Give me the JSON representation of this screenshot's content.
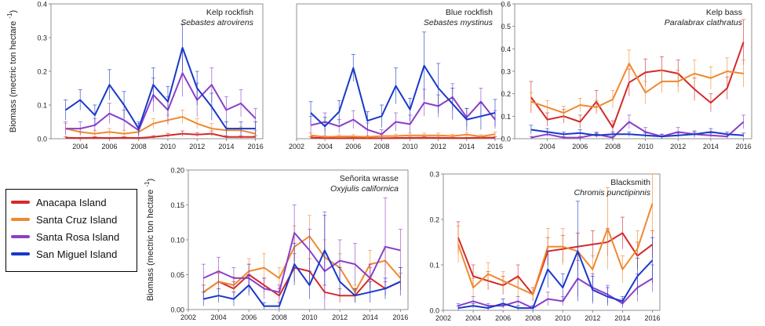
{
  "years": [
    2003,
    2004,
    2005,
    2006,
    2007,
    2008,
    2009,
    2010,
    2011,
    2012,
    2013,
    2014,
    2015,
    2016
  ],
  "colors": {
    "Anacapa Island": "#d42a2a",
    "Santa Cruz Island": "#ee8a2e",
    "Santa Rosa Island": "#8a3fc8",
    "San Miguel Island": "#1a38c8"
  },
  "legend": {
    "items": [
      {
        "label": "Anacapa Island",
        "color": "#d42a2a"
      },
      {
        "label": "Santa Cruz Island",
        "color": "#ee8a2e"
      },
      {
        "label": "Santa Rosa Island",
        "color": "#8a3fc8"
      },
      {
        "label": "San Miguel Island",
        "color": "#1a38c8"
      }
    ]
  },
  "chart_data": [
    {
      "type": "line",
      "title": "Kelp rockfish",
      "subtitle": "Sebastes atrovirens",
      "ylabel": "Biomass (mectric ton hectare",
      "ylabel_sup": "-1",
      "ylabel_close": ")",
      "xlim": [
        2002,
        2016.5
      ],
      "ylim": [
        0,
        0.4
      ],
      "yticks": [
        "0.0",
        "0.1",
        "0.2",
        "0.3",
        "0.4"
      ],
      "ytick_values": [
        0,
        0.1,
        0.2,
        0.3,
        0.4
      ],
      "xticks": [
        "2004",
        "2006",
        "2008",
        "2010",
        "2012",
        "2014",
        "2016"
      ],
      "xtick_values": [
        2004,
        2006,
        2008,
        2010,
        2012,
        2014,
        2016
      ],
      "series": [
        {
          "name": "Anacapa Island",
          "values": [
            0.003,
            0.002,
            0.003,
            0.002,
            0.003,
            0.002,
            0.005,
            0.01,
            0.015,
            0.012,
            0.015,
            0.005,
            0.005,
            0.005
          ],
          "err": [
            0.003,
            0.002,
            0.003,
            0.002,
            0.003,
            0.002,
            0.004,
            0.006,
            0.008,
            0.006,
            0.008,
            0.004,
            0.004,
            0.004
          ]
        },
        {
          "name": "Santa Cruz Island",
          "values": [
            0.03,
            0.02,
            0.015,
            0.02,
            0.015,
            0.02,
            0.045,
            0.055,
            0.065,
            0.045,
            0.03,
            0.025,
            0.025,
            0.015
          ],
          "err": [
            0.015,
            0.01,
            0.01,
            0.01,
            0.01,
            0.01,
            0.015,
            0.015,
            0.02,
            0.015,
            0.015,
            0.01,
            0.01,
            0.01
          ]
        },
        {
          "name": "Santa Rosa Island",
          "values": [
            0.03,
            0.03,
            0.04,
            0.075,
            0.055,
            0.025,
            0.13,
            0.085,
            0.195,
            0.115,
            0.16,
            0.085,
            0.105,
            0.06
          ],
          "err": [
            0.02,
            0.02,
            0.02,
            0.03,
            0.03,
            0.02,
            0.05,
            0.04,
            0.07,
            0.05,
            0.05,
            0.04,
            0.04,
            0.03
          ]
        },
        {
          "name": "San Miguel Island",
          "values": [
            0.085,
            0.115,
            0.07,
            0.16,
            0.1,
            0.03,
            0.16,
            0.11,
            0.27,
            0.15,
            0.095,
            0.03,
            0.03,
            0.03
          ],
          "err": [
            0.03,
            0.03,
            0.03,
            0.045,
            0.04,
            0.02,
            0.05,
            0.045,
            0.07,
            0.05,
            0.04,
            0.02,
            0.02,
            0.02
          ]
        }
      ]
    },
    {
      "type": "line",
      "title": "Blue rockfish",
      "subtitle": "Sebastes mystinus",
      "xlim": [
        2002,
        2016.5
      ],
      "ylim": [
        0,
        0.6
      ],
      "yticks": [],
      "ytick_values": [],
      "xticks": [
        "2002",
        "2004",
        "2006",
        "2008",
        "2010",
        "2012",
        "2014",
        "2016"
      ],
      "xtick_values": [
        2002,
        2004,
        2006,
        2008,
        2010,
        2012,
        2014,
        2016
      ],
      "series": [
        {
          "name": "Anacapa Island",
          "values": [
            0.005,
            0.003,
            0.002,
            0.003,
            0.002,
            0.002,
            0.003,
            0.004,
            0.005,
            0.004,
            0.003,
            0.003,
            0.005,
            0.005
          ],
          "err": [
            0.004,
            0.003,
            0.002,
            0.003,
            0.002,
            0.002,
            0.003,
            0.003,
            0.004,
            0.003,
            0.003,
            0.003,
            0.004,
            0.004
          ]
        },
        {
          "name": "Santa Cruz Island",
          "values": [
            0.015,
            0.008,
            0.01,
            0.01,
            0.008,
            0.012,
            0.012,
            0.015,
            0.015,
            0.015,
            0.012,
            0.018,
            0.01,
            0.02
          ],
          "err": [
            0.01,
            0.006,
            0.008,
            0.008,
            0.006,
            0.008,
            0.008,
            0.01,
            0.01,
            0.01,
            0.008,
            0.01,
            0.008,
            0.01
          ]
        },
        {
          "name": "Santa Rosa Island",
          "values": [
            0.06,
            0.075,
            0.055,
            0.085,
            0.04,
            0.02,
            0.075,
            0.065,
            0.16,
            0.145,
            0.185,
            0.095,
            0.165,
            0.085
          ],
          "err": [
            0.04,
            0.04,
            0.03,
            0.04,
            0.03,
            0.02,
            0.04,
            0.04,
            0.06,
            0.05,
            0.06,
            0.04,
            0.06,
            0.04
          ]
        },
        {
          "name": "San Miguel Island",
          "values": [
            0.115,
            0.055,
            0.12,
            0.315,
            0.08,
            0.1,
            0.235,
            0.13,
            0.325,
            0.225,
            0.155,
            0.085,
            0.1,
            0.115
          ],
          "err": [
            0.05,
            0.04,
            0.05,
            0.06,
            0.04,
            0.05,
            0.08,
            0.05,
            0.15,
            0.11,
            0.07,
            0.05,
            0.06,
            0.06
          ]
        }
      ]
    },
    {
      "type": "line",
      "title": "Kelp bass",
      "subtitle": "Paralabrax clathratus",
      "xlim": [
        2002,
        2016.5
      ],
      "ylim": [
        0,
        0.6
      ],
      "yticks": [
        "0.0",
        "0.1",
        "0.2",
        "0.3",
        "0.4",
        "0.5",
        "0.6"
      ],
      "ytick_values": [
        0,
        0.1,
        0.2,
        0.3,
        0.4,
        0.5,
        0.6
      ],
      "xticks": [
        "2004",
        "2006",
        "2008",
        "2010",
        "2012",
        "2014",
        "2016"
      ],
      "xtick_values": [
        2004,
        2006,
        2008,
        2010,
        2012,
        2014,
        2016
      ],
      "series": [
        {
          "name": "Anacapa Island",
          "values": [
            0.185,
            0.085,
            0.1,
            0.075,
            0.165,
            0.05,
            0.25,
            0.295,
            0.305,
            0.29,
            0.22,
            0.16,
            0.225,
            0.43
          ],
          "err": [
            0.07,
            0.03,
            0.03,
            0.03,
            0.05,
            0.03,
            0.06,
            0.06,
            0.06,
            0.06,
            0.05,
            0.04,
            0.05,
            0.1
          ]
        },
        {
          "name": "Santa Cruz Island",
          "values": [
            0.165,
            0.14,
            0.115,
            0.15,
            0.14,
            0.175,
            0.335,
            0.205,
            0.255,
            0.255,
            0.29,
            0.27,
            0.3,
            0.29
          ],
          "err": [
            0.04,
            0.03,
            0.03,
            0.03,
            0.03,
            0.04,
            0.06,
            0.05,
            0.05,
            0.05,
            0.06,
            0.05,
            0.06,
            0.06
          ]
        },
        {
          "name": "Santa Rosa Island",
          "values": [
            0.005,
            0.02,
            0.005,
            0.005,
            0.02,
            0.005,
            0.075,
            0.03,
            0.01,
            0.03,
            0.02,
            0.015,
            0.01,
            0.075
          ],
          "err": [
            0.005,
            0.01,
            0.005,
            0.005,
            0.01,
            0.005,
            0.03,
            0.02,
            0.01,
            0.02,
            0.015,
            0.01,
            0.01,
            0.03
          ]
        },
        {
          "name": "San Miguel Island",
          "values": [
            0.04,
            0.03,
            0.02,
            0.025,
            0.015,
            0.02,
            0.02,
            0.015,
            0.01,
            0.015,
            0.02,
            0.03,
            0.02,
            0.015
          ],
          "err": [
            0.02,
            0.015,
            0.01,
            0.015,
            0.01,
            0.01,
            0.01,
            0.01,
            0.01,
            0.01,
            0.01,
            0.015,
            0.01,
            0.01
          ]
        }
      ]
    },
    {
      "type": "line",
      "title": "Señorita wrasse",
      "subtitle": "Oxyjulis californica",
      "ylabel": "Biomass (mectric ton hectare",
      "ylabel_sup": "-1",
      "ylabel_close": ")",
      "xlim": [
        2002,
        2016.5
      ],
      "ylim": [
        0,
        0.2
      ],
      "yticks": [
        "0.00",
        "0.05",
        "0.10",
        "0.15",
        "0.20"
      ],
      "ytick_values": [
        0,
        0.05,
        0.1,
        0.15,
        0.2
      ],
      "xticks": [
        "2002",
        "2004",
        "2006",
        "2008",
        "2010",
        "2012",
        "2014",
        "2016"
      ],
      "xtick_values": [
        2002,
        2004,
        2006,
        2008,
        2010,
        2012,
        2014,
        2016
      ],
      "series": [
        {
          "name": "Anacapa Island",
          "values": [
            0.025,
            0.04,
            0.03,
            0.05,
            0.035,
            0.02,
            0.06,
            0.055,
            0.025,
            0.02,
            0.02,
            0.045,
            0.03,
            0.04
          ],
          "err": [
            0.01,
            0.012,
            0.01,
            0.015,
            0.01,
            0.01,
            0.02,
            0.018,
            0.01,
            0.01,
            0.01,
            0.015,
            0.01,
            0.012
          ]
        },
        {
          "name": "Santa Cruz Island",
          "values": [
            0.025,
            0.04,
            0.035,
            0.055,
            0.06,
            0.045,
            0.09,
            0.105,
            0.075,
            0.06,
            0.025,
            0.065,
            0.07,
            0.045
          ],
          "err": [
            0.01,
            0.015,
            0.012,
            0.018,
            0.02,
            0.015,
            0.03,
            0.03,
            0.025,
            0.02,
            0.01,
            0.02,
            0.02,
            0.015
          ]
        },
        {
          "name": "Santa Rosa Island",
          "values": [
            0.045,
            0.055,
            0.045,
            0.045,
            0.03,
            0.025,
            0.11,
            0.085,
            0.055,
            0.07,
            0.065,
            0.045,
            0.09,
            0.085
          ],
          "err": [
            0.02,
            0.02,
            0.015,
            0.02,
            0.015,
            0.01,
            0.04,
            0.03,
            0.085,
            0.03,
            0.03,
            0.02,
            0.07,
            0.03
          ]
        },
        {
          "name": "San Miguel Island",
          "values": [
            0.015,
            0.02,
            0.015,
            0.035,
            0.005,
            0.005,
            0.065,
            0.035,
            0.085,
            0.04,
            0.02,
            0.025,
            0.03,
            0.04
          ],
          "err": [
            0.01,
            0.01,
            0.01,
            0.015,
            0.005,
            0.005,
            0.03,
            0.02,
            0.05,
            0.02,
            0.01,
            0.015,
            0.015,
            0.02
          ]
        }
      ]
    },
    {
      "type": "line",
      "title": "Blacksmith",
      "subtitle": "Chromis punctipinnis",
      "xlim": [
        2002,
        2016.5
      ],
      "ylim": [
        0,
        0.3
      ],
      "yticks": [
        "0.0",
        "0.1",
        "0.2",
        "0.3"
      ],
      "ytick_values": [
        0,
        0.1,
        0.2,
        0.3
      ],
      "xticks": [
        "2002",
        "2004",
        "2006",
        "2008",
        "2010",
        "2012",
        "2014",
        "2016"
      ],
      "xtick_values": [
        2002,
        2004,
        2006,
        2008,
        2010,
        2012,
        2014,
        2016
      ],
      "series": [
        {
          "name": "Anacapa Island",
          "values": [
            0.16,
            0.075,
            0.065,
            0.055,
            0.075,
            0.035,
            0.13,
            0.135,
            0.14,
            0.145,
            0.15,
            0.17,
            0.12,
            0.145
          ],
          "err": [
            0.035,
            0.025,
            0.02,
            0.02,
            0.025,
            0.015,
            0.03,
            0.03,
            0.03,
            0.03,
            0.03,
            0.035,
            0.03,
            0.03
          ]
        },
        {
          "name": "Santa Cruz Island",
          "values": [
            0.145,
            0.05,
            0.08,
            0.065,
            0.05,
            0.035,
            0.14,
            0.14,
            0.13,
            0.09,
            0.18,
            0.09,
            0.135,
            0.235
          ],
          "err": [
            0.04,
            0.02,
            0.025,
            0.02,
            0.02,
            0.015,
            0.04,
            0.04,
            0.04,
            0.03,
            0.09,
            0.03,
            0.04,
            0.07
          ]
        },
        {
          "name": "Santa Rosa Island",
          "values": [
            0.01,
            0.02,
            0.01,
            0.01,
            0.02,
            0.005,
            0.025,
            0.02,
            0.07,
            0.05,
            0.035,
            0.015,
            0.05,
            0.07
          ],
          "err": [
            0.005,
            0.01,
            0.005,
            0.005,
            0.01,
            0.005,
            0.015,
            0.01,
            0.04,
            0.03,
            0.02,
            0.01,
            0.03,
            0.03
          ]
        },
        {
          "name": "San Miguel Island",
          "values": [
            0.005,
            0.01,
            0.005,
            0.015,
            0.005,
            0.005,
            0.09,
            0.05,
            0.13,
            0.045,
            0.03,
            0.02,
            0.075,
            0.11
          ],
          "err": [
            0.005,
            0.005,
            0.005,
            0.01,
            0.005,
            0.005,
            0.04,
            0.03,
            0.11,
            0.03,
            0.02,
            0.01,
            0.04,
            0.05
          ]
        }
      ]
    }
  ]
}
